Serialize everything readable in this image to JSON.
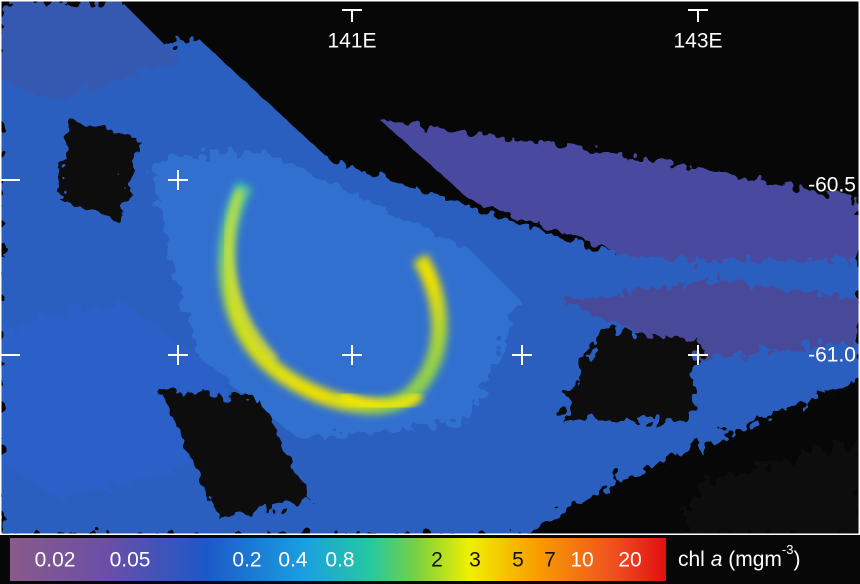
{
  "map": {
    "lon_labels": [
      "141E",
      "143E"
    ],
    "lat_labels": [
      "-60.5",
      "-61.0"
    ]
  },
  "colorbar": {
    "labels": [
      "0.02",
      "0.05",
      "0.2",
      "0.4",
      "0.8",
      "2",
      "3",
      "5",
      "7",
      "10",
      "20"
    ],
    "title": {
      "prefix": "chl",
      "variable": "a",
      "unit": "(mgm",
      "exponent": "-3",
      "close": ")"
    }
  }
}
